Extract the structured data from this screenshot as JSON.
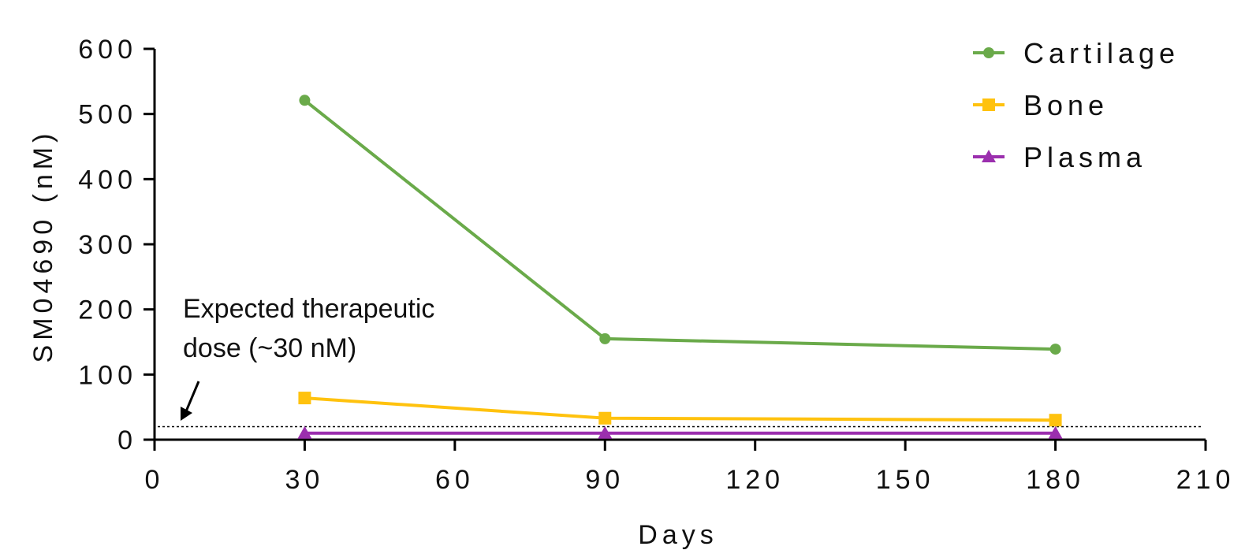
{
  "chart_data": {
    "type": "line",
    "xlabel": "Days",
    "ylabel": "SM04690 (nM)",
    "xlim": [
      0,
      210
    ],
    "ylim": [
      0,
      600
    ],
    "xticks": [
      0,
      30,
      60,
      90,
      120,
      150,
      180,
      210
    ],
    "yticks": [
      0,
      100,
      200,
      300,
      400,
      500,
      600
    ],
    "x": [
      30,
      90,
      180
    ],
    "series": [
      {
        "name": "Cartilage",
        "values": [
          521,
          155,
          139
        ],
        "color": "#6aaa4a",
        "marker": "circle"
      },
      {
        "name": "Bone",
        "values": [
          64,
          33,
          30
        ],
        "color": "#ffc20e",
        "marker": "square"
      },
      {
        "name": "Plasma",
        "values": [
          10,
          10,
          10
        ],
        "color": "#9b2fae",
        "marker": "triangle"
      }
    ],
    "reference_line": {
      "value": 20,
      "style": "dotted"
    },
    "annotation": {
      "lines": [
        "Expected therapeutic",
        "dose (~30 nM)"
      ]
    },
    "legend_position": "top-right",
    "grid": false
  }
}
